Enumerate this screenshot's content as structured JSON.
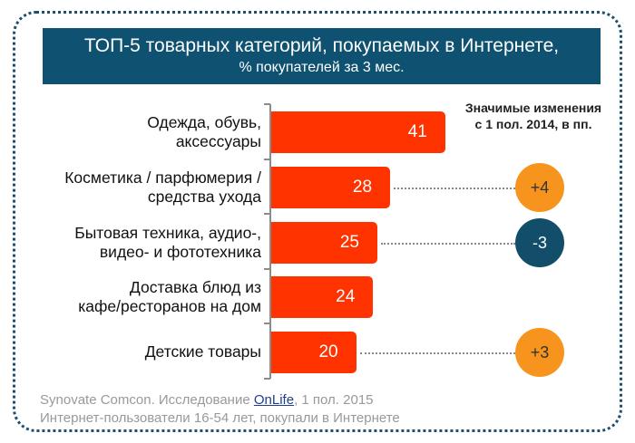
{
  "header": {
    "title": "ТОП-5 товарных категорий, покупаемых в Интернете,",
    "subtitle": "% покупателей за 3 мес."
  },
  "changes_title": {
    "line1": "Значимые изменения",
    "line2": "с 1 пол. 2014, в пп."
  },
  "chart_data": {
    "type": "bar",
    "orientation": "horizontal",
    "title": "ТОП-5 товарных категорий, покупаемых в Интернете, % покупателей за 3 мес.",
    "xlabel": "",
    "ylabel": "",
    "categories": [
      "Одежда, обувь, аксессуары",
      "Косметика / парфюмерия / средства ухода",
      "Бытовая техника, аудио-, видео- и фототехника",
      "Доставка блюд из кафе/ресторанов на дом",
      "Детские товары"
    ],
    "category_lines": [
      [
        "Одежда, обувь,",
        "аксессуары"
      ],
      [
        "Косметика / парфюмерия /",
        "средства ухода"
      ],
      [
        "Бытовая техника, аудио-,",
        "видео- и фототехника"
      ],
      [
        "Доставка блюд из",
        "кафе/ресторанов на дом"
      ],
      [
        "Детские товары"
      ]
    ],
    "values": [
      41,
      28,
      25,
      24,
      20
    ],
    "changes": [
      null,
      "+4",
      "-3",
      null,
      "+3"
    ],
    "changes_title": "Значимые изменения с 1 пол. 2014, в пп.",
    "grid": false,
    "colors": {
      "bar": "#ff3300",
      "positive_change": "#f7941d",
      "negative_change": "#124e6a"
    }
  },
  "footer": {
    "source_prefix": "Synovate Comcon. Исследование ",
    "source_link": "OnLife",
    "source_suffix": ", 1 пол. 2015",
    "note": "Интернет-пользователи 16-54 лет, покупали в Интернете"
  }
}
